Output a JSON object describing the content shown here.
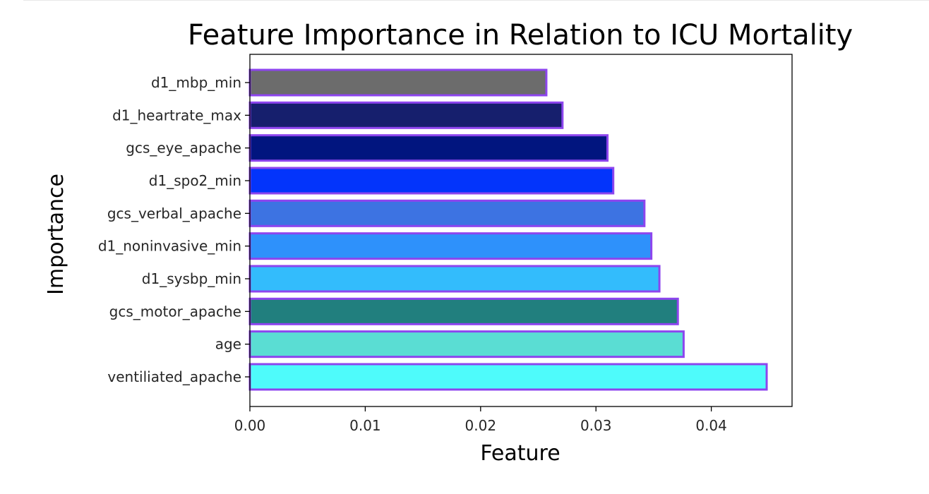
{
  "chart_data": {
    "type": "bar",
    "orientation": "horizontal",
    "title": "Feature Importance in Relation to ICU Mortality",
    "xlabel": "Feature",
    "ylabel": "Importance",
    "xlim": [
      0,
      0.047
    ],
    "xticks": [
      0.0,
      0.01,
      0.02,
      0.03,
      0.04
    ],
    "xtick_labels": [
      "0.00",
      "0.01",
      "0.02",
      "0.03",
      "0.04"
    ],
    "grid": false,
    "categories": [
      "ventiliated_apache",
      "age",
      "gcs_motor_apache",
      "d1_sysbp_min",
      "d1_noninvasive_min",
      "gcs_verbal_apache",
      "d1_spo2_min",
      "gcs_eye_apache",
      "d1_heartrate_max",
      "d1_mbp_min"
    ],
    "values": [
      0.0448,
      0.0376,
      0.0371,
      0.0355,
      0.0348,
      0.0342,
      0.0315,
      0.031,
      0.0271,
      0.0257
    ],
    "colors": [
      "#4efbfb",
      "#5addd3",
      "#217f7e",
      "#33bcfc",
      "#2e91fb",
      "#3d73e2",
      "#0334fb",
      "#01157f",
      "#161f6d",
      "#6c6c6c"
    ],
    "edge_color": "#8d45ee"
  }
}
